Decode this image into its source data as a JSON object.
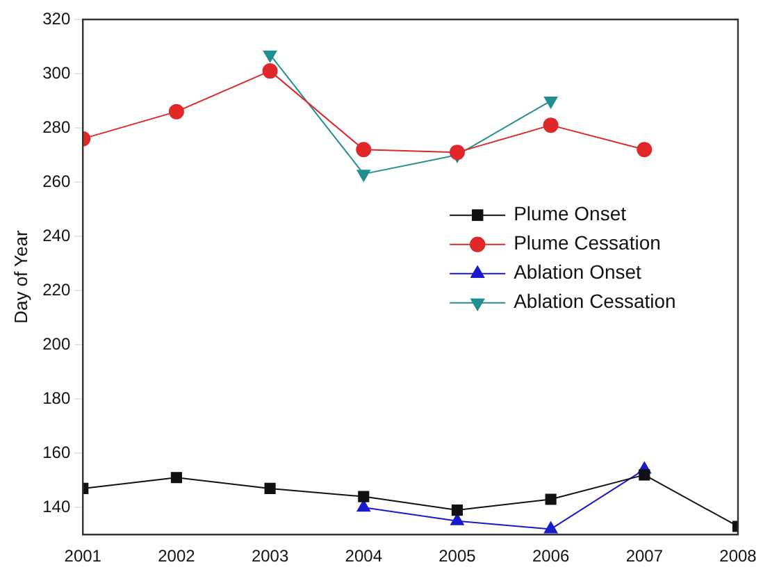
{
  "chart_data": {
    "type": "line",
    "ylabel": "Day of Year",
    "xlim": [
      2001,
      2008
    ],
    "xticks": [
      2001,
      2002,
      2003,
      2004,
      2005,
      2006,
      2007,
      2008
    ],
    "ylim": [
      130,
      320
    ],
    "yticks": [
      140,
      160,
      180,
      200,
      220,
      240,
      260,
      280,
      300,
      320
    ],
    "grid": false,
    "legend": "right",
    "line_style": "solid",
    "series": [
      {
        "name": "Plume Onset",
        "color": "#111111",
        "marker": "square",
        "x": [
          2001,
          2002,
          2003,
          2004,
          2005,
          2006,
          2007,
          2008
        ],
        "values": [
          147,
          151,
          147,
          144,
          139,
          143,
          152,
          133
        ]
      },
      {
        "name": "Plume Cessation",
        "color": "#e02828",
        "marker": "circle",
        "x": [
          2001,
          2002,
          2003,
          2004,
          2005,
          2006,
          2007
        ],
        "values": [
          276,
          286,
          301,
          272,
          271,
          281,
          272
        ]
      },
      {
        "name": "Ablation Onset",
        "color": "#1a1acc",
        "marker": "triangle",
        "x": [
          2004,
          2005,
          2006,
          2007
        ],
        "values": [
          140,
          135,
          132,
          154
        ]
      },
      {
        "name": "Ablation Cessation",
        "color": "#1f8f8f",
        "marker": "triangle-down",
        "x": [
          2003,
          2004,
          2005,
          2006
        ],
        "values": [
          307,
          263,
          270,
          290
        ]
      }
    ]
  }
}
